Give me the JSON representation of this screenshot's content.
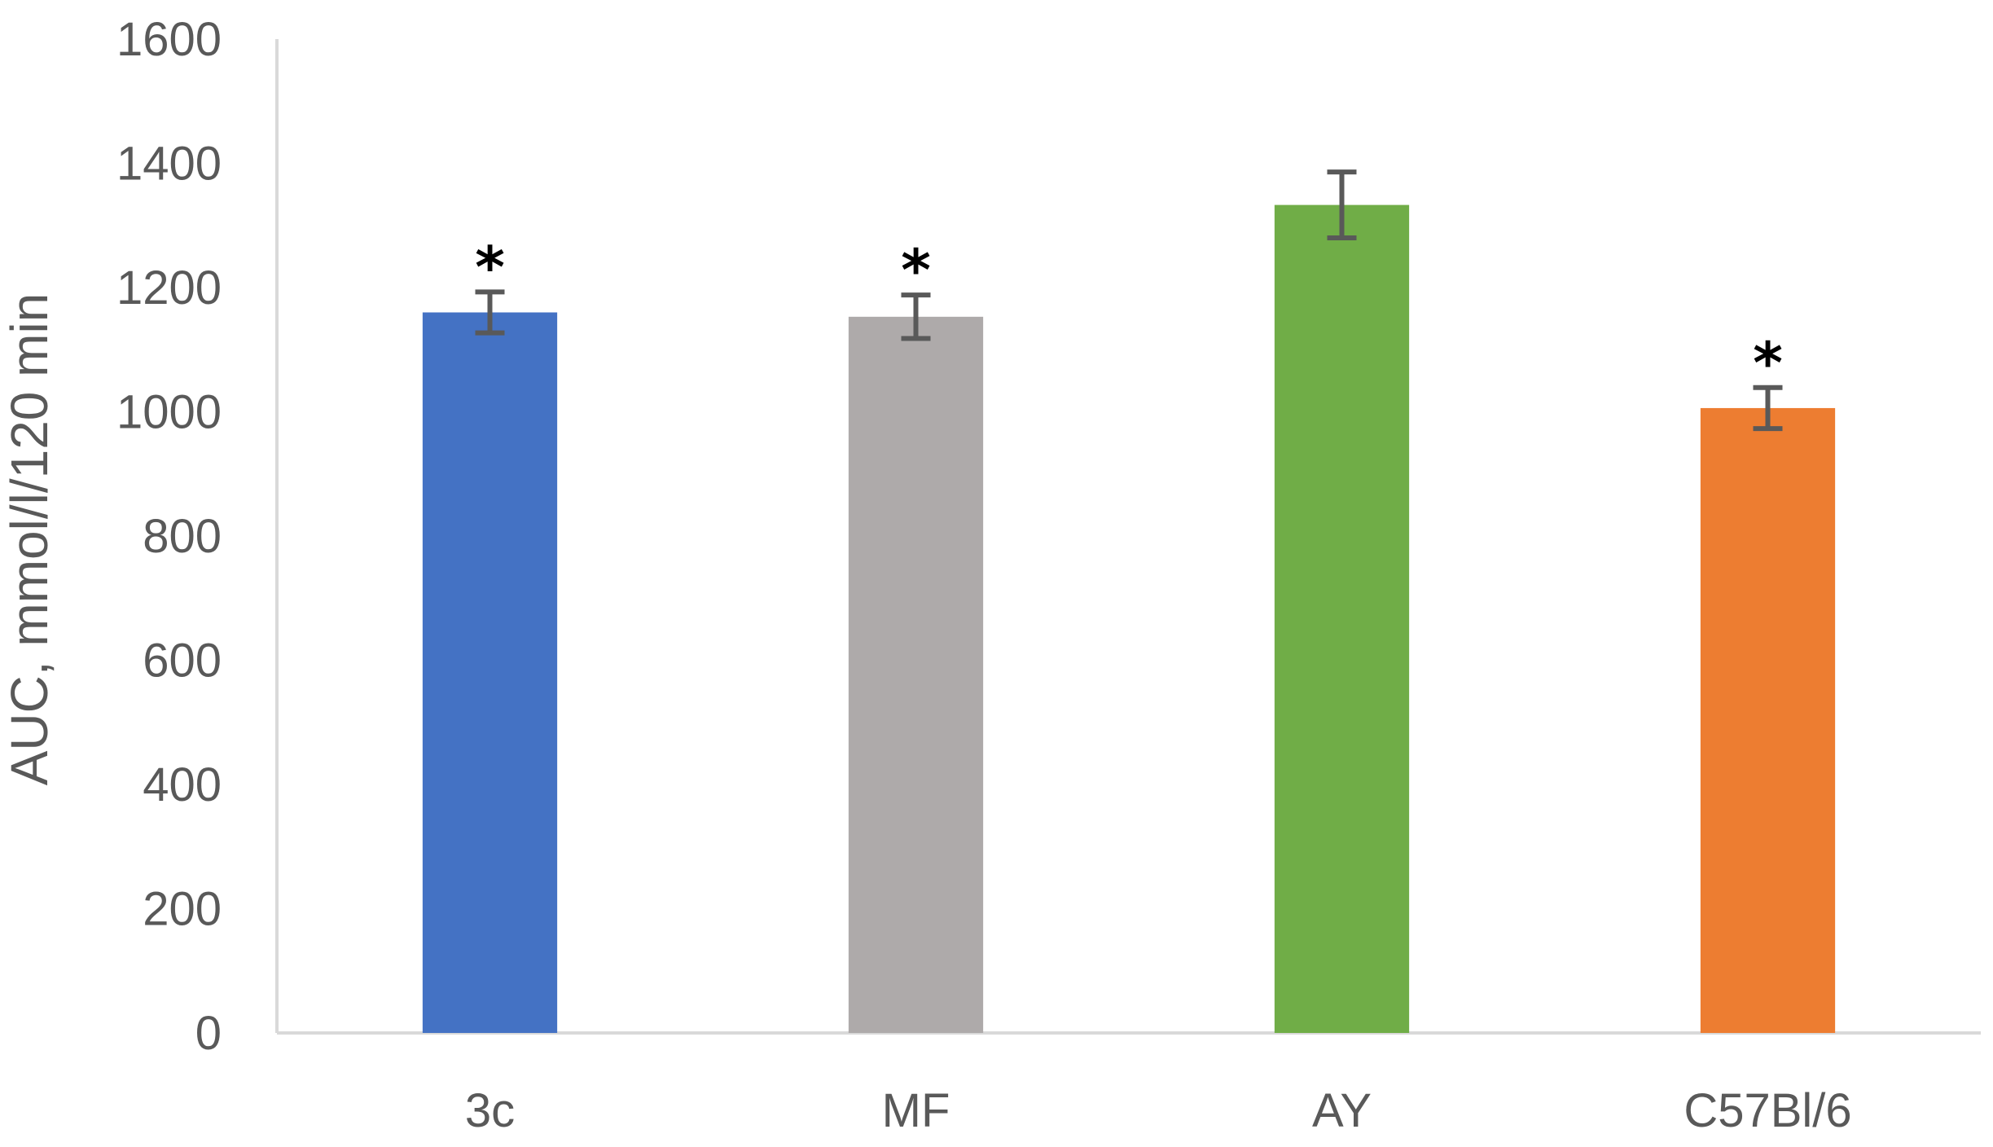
{
  "chart_data": {
    "type": "bar",
    "title": "",
    "xlabel": "",
    "ylabel": "AUC, mmol/l/120 min",
    "ylim": [
      0,
      1600
    ],
    "yticks": [
      0,
      200,
      400,
      600,
      800,
      1000,
      1200,
      1400,
      1600
    ],
    "grid": false,
    "legend": "none",
    "categories": [
      "3c",
      "MF",
      "AY",
      "C57Bl/6"
    ],
    "values": [
      1160,
      1153,
      1333,
      1006
    ],
    "error": [
      33,
      35,
      53,
      33
    ],
    "colors": [
      "#4472C4",
      "#AEAAAA",
      "#70AD47",
      "#ED7D31"
    ],
    "annotations": [
      "*",
      "*",
      "",
      "*"
    ]
  }
}
